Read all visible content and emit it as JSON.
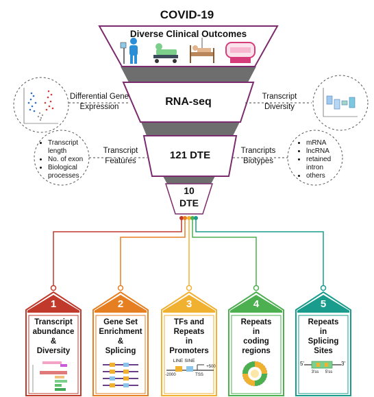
{
  "title": "COVID-19",
  "funnel": {
    "stage1": "Diverse Clinical Outcomes",
    "stage2": "RNA-seq",
    "stage3": "121 DTE",
    "stage4_line1": "10",
    "stage4_line2": "DTE"
  },
  "side_labels": {
    "differential": [
      "Differential Gene",
      "Expression"
    ],
    "transcript_diversity": [
      "Transcript",
      "Diversity"
    ],
    "transcript_features": [
      "Transcript",
      "Features"
    ],
    "transcript_biotypes": [
      "Trancripts",
      "Biotypes"
    ]
  },
  "features_list": [
    "Transcript length",
    "No. of exon",
    "Biological processes"
  ],
  "biotypes_list": [
    "mRNA",
    "lncRNA",
    "retained intron",
    "others"
  ],
  "cards": [
    {
      "number": "1",
      "title": [
        "Transcript",
        "abundance",
        "&",
        "Diversity"
      ],
      "color": "#c0392b"
    },
    {
      "number": "2",
      "title": [
        "Gene Set",
        "Enrichment",
        "&",
        "Splicing"
      ],
      "color": "#e67e22"
    },
    {
      "number": "3",
      "title": [
        "TFs and",
        "Repeats",
        "in",
        "Promoters"
      ],
      "color": "#f0b030"
    },
    {
      "number": "4",
      "title": [
        "Repeats",
        "in",
        "coding",
        "regions"
      ],
      "color": "#4caf50"
    },
    {
      "number": "5",
      "title": [
        "Repeats",
        "in",
        "Splicing",
        "Sites"
      ],
      "color": "#1a9c8c"
    }
  ],
  "card3_mini": {
    "line": "LINE",
    "sine": "SINE",
    "tss": "TSS",
    "left": "-2000",
    "right": "+500"
  },
  "card5_mini": {
    "five": "5'",
    "three": "3'",
    "ss5": "3'ss",
    "ss3": "5'ss"
  },
  "colors": {
    "funnel_border": "#7b2a6e",
    "funnel_gray": "#7a7a7a"
  }
}
